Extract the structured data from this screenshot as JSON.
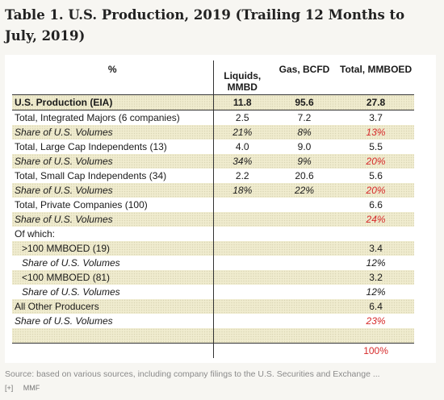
{
  "title": "Table 1. U.S. Production, 2019 (Trailing 12 Months to July, 2019)",
  "table": {
    "headers": [
      "%",
      "Liquids, MMBD",
      "Gas, BCFD",
      "Total, MMBOED"
    ],
    "rows": [
      {
        "label": "U.S. Production (EIA)",
        "liquids": "11.8",
        "gas": "95.6",
        "total": "27.8"
      },
      {
        "label": "Total, Integrated Majors (6 companies)",
        "liquids": "2.5",
        "gas": "7.2",
        "total": "3.7"
      },
      {
        "label": "Share of U.S. Volumes",
        "liquids": "21%",
        "gas": "8%",
        "total": "13%"
      },
      {
        "label": "Total, Large Cap Independents (13)",
        "liquids": "4.0",
        "gas": "9.0",
        "total": "5.5"
      },
      {
        "label": "Share of U.S. Volumes",
        "liquids": "34%",
        "gas": "9%",
        "total": "20%"
      },
      {
        "label": "Total, Small Cap Independents (34)",
        "liquids": "2.2",
        "gas": "20.6",
        "total": "5.6"
      },
      {
        "label": "Share of U.S. Volumes",
        "liquids": "18%",
        "gas": "22%",
        "total": "20%"
      },
      {
        "label": "Total, Private Companies (100)",
        "liquids": "",
        "gas": "",
        "total": "6.6"
      },
      {
        "label": "Share of U.S. Volumes",
        "liquids": "",
        "gas": "",
        "total": "24%"
      },
      {
        "label": "Of which:",
        "liquids": "",
        "gas": "",
        "total": ""
      },
      {
        "label": ">100 MMBOED (19)",
        "liquids": "",
        "gas": "",
        "total": "3.4"
      },
      {
        "label": "Share of U.S. Volumes",
        "liquids": "",
        "gas": "",
        "total": "12%"
      },
      {
        "label": "<100 MMBOED (81)",
        "liquids": "",
        "gas": "",
        "total": "3.2"
      },
      {
        "label": "Share of U.S. Volumes",
        "liquids": "",
        "gas": "",
        "total": "12%"
      },
      {
        "label": "All Other Producers",
        "liquids": "",
        "gas": "",
        "total": "6.4"
      },
      {
        "label": "Share of U.S. Volumes",
        "liquids": "",
        "gas": "",
        "total": "23%"
      },
      {
        "label": "",
        "liquids": "",
        "gas": "",
        "total": ""
      },
      {
        "label": "",
        "liquids": "",
        "gas": "",
        "total": "100%"
      }
    ]
  },
  "caption": "Source: based on various sources, including company filings to the U.S. Securities and Exchange ...",
  "footer": {
    "expand": "[+]",
    "author": "MMF"
  },
  "colors": {
    "red_share": "#d62a2a",
    "shade": "#f0eccf"
  }
}
